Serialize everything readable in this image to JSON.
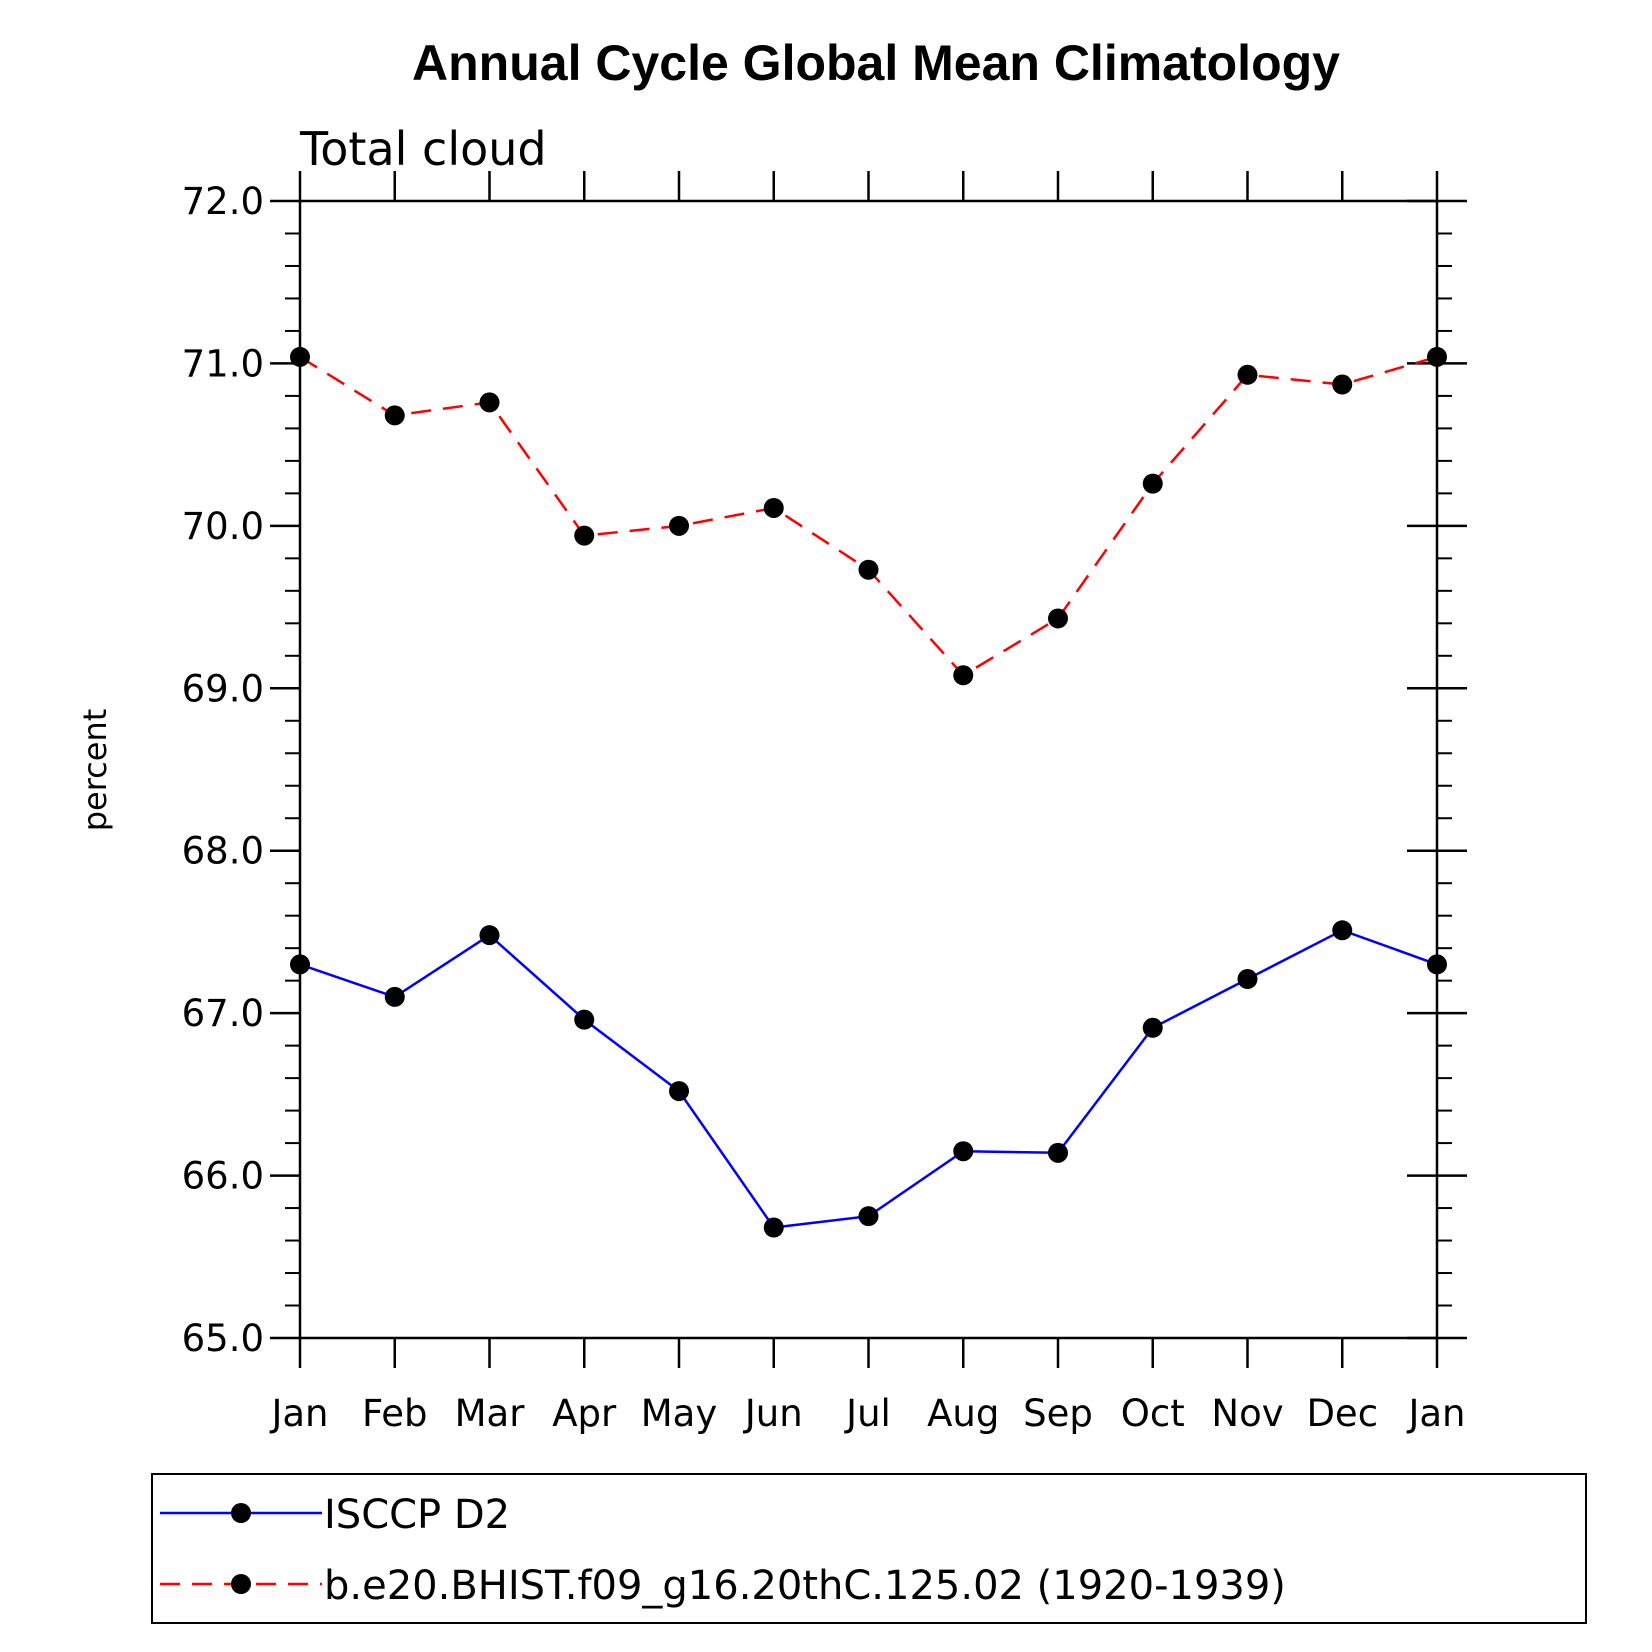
{
  "chart_data": {
    "type": "line",
    "title": "Annual Cycle Global Mean Climatology",
    "subtitle": "Total cloud",
    "xlabel": "",
    "ylabel": "percent",
    "categories": [
      "Jan",
      "Feb",
      "Mar",
      "Apr",
      "May",
      "Jun",
      "Jul",
      "Aug",
      "Sep",
      "Oct",
      "Nov",
      "Dec",
      "Jan"
    ],
    "ylim": [
      65.0,
      72.0
    ],
    "y_ticks": [
      "65.0",
      "66.0",
      "67.0",
      "68.0",
      "69.0",
      "70.0",
      "71.0",
      "72.0"
    ],
    "grid": false,
    "legend_position": "bottom",
    "series": [
      {
        "name": "ISCCP D2",
        "color": "#0000ff",
        "dash": "solid",
        "marker": "filled-circle",
        "values": [
          67.3,
          67.1,
          67.48,
          66.96,
          66.52,
          65.68,
          65.75,
          66.15,
          66.14,
          66.91,
          67.21,
          67.51,
          67.3
        ]
      },
      {
        "name": "b.e20.BHIST.f09_g16.20thC.125.02 (1920-1939)",
        "color": "#ff0000",
        "dash": "dashed",
        "marker": "filled-circle",
        "values": [
          71.04,
          70.68,
          70.76,
          69.94,
          70.0,
          70.11,
          69.73,
          69.08,
          69.43,
          70.26,
          70.93,
          70.87,
          71.04
        ]
      }
    ]
  }
}
